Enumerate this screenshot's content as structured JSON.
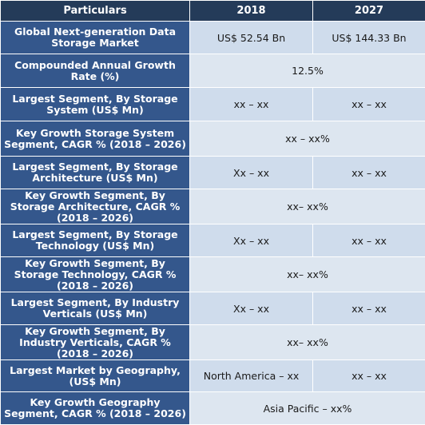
{
  "header": {
    "particulars": "Particulars",
    "col_2018": "2018",
    "col_2027": "2027"
  },
  "rows": [
    {
      "label": "Global Next-generation Data Storage Market",
      "v2018": "US$ 52.54 Bn",
      "v2027": "US$ 144.33 Bn"
    },
    {
      "label": "Compounded Annual Growth Rate (%)",
      "span": "12.5%"
    },
    {
      "label": "Largest Segment, By Storage System (US$ Mn)",
      "v2018": "xx – xx",
      "v2027": "xx – xx"
    },
    {
      "label": "Key Growth Storage System Segment, CAGR % (2018 – 2026)",
      "span": "xx – xx%"
    },
    {
      "label": "Largest Segment, By Storage Architecture (US$ Mn)",
      "v2018": "Xx – xx",
      "v2027": "xx – xx"
    },
    {
      "label": "Key Growth Segment, By Storage Architecture, CAGR % (2018 – 2026)",
      "span": "xx– xx%"
    },
    {
      "label": "Largest Segment, By Storage Technology (US$ Mn)",
      "v2018": "Xx – xx",
      "v2027": "xx – xx"
    },
    {
      "label": "Key Growth Segment, By Storage Technology, CAGR % (2018 – 2026)",
      "span": "xx– xx%"
    },
    {
      "label": "Largest Segment, By Industry Verticals (US$ Mn)",
      "v2018": "Xx – xx",
      "v2027": "xx – xx"
    },
    {
      "label": "Key Growth Segment, By Industry Verticals, CAGR % (2018 – 2026)",
      "span": "xx– xx%"
    },
    {
      "label": "Largest Market by Geography, (US$ Mn)",
      "v2018": "North America – xx",
      "v2027": "xx – xx"
    },
    {
      "label": "Key Growth Geography Segment, CAGR % (2018 – 2026)",
      "span": "Asia Pacific – xx%"
    }
  ]
}
